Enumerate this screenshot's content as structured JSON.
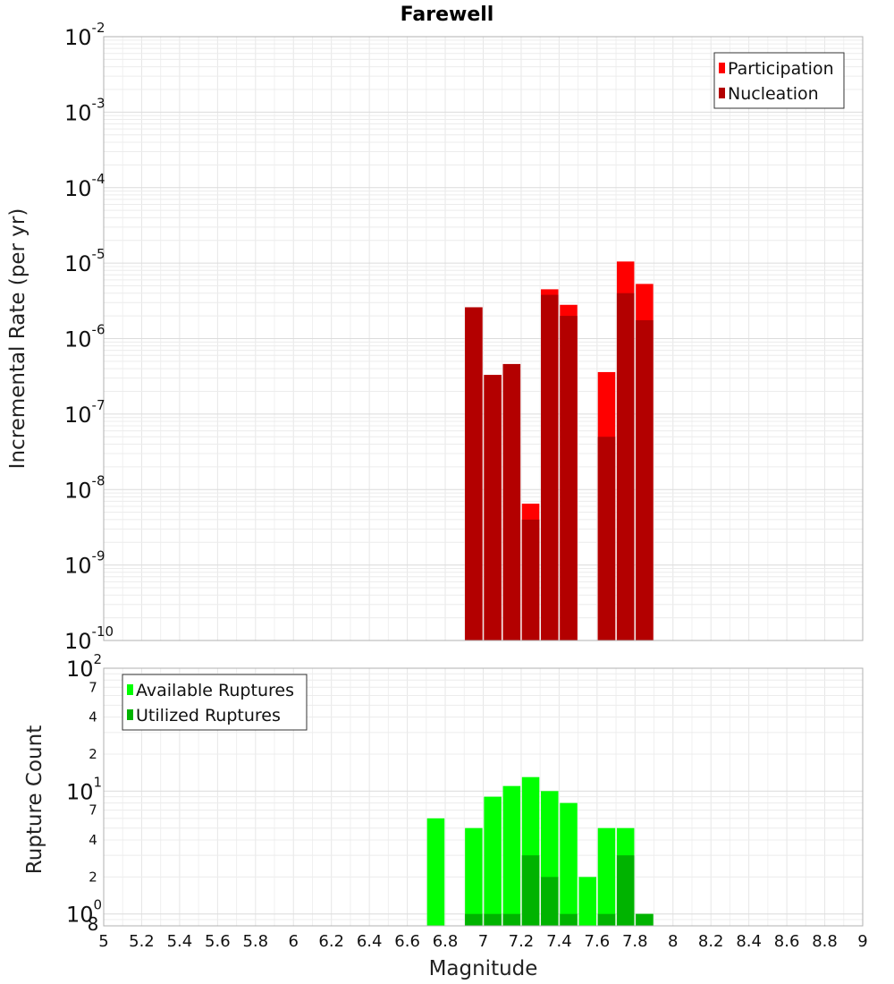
{
  "chart_data": [
    {
      "type": "bar",
      "title": "Farewell",
      "xlabel": "",
      "ylabel": "Incremental Rate (per yr)",
      "yscale": "log",
      "ylim": [
        1e-10,
        0.01
      ],
      "xlim": [
        5,
        9
      ],
      "yticks": [
        {
          "base": "10",
          "exp": "-2"
        },
        {
          "base": "10",
          "exp": "-3"
        },
        {
          "base": "10",
          "exp": "-4"
        },
        {
          "base": "10",
          "exp": "-5"
        },
        {
          "base": "10",
          "exp": "-6"
        },
        {
          "base": "10",
          "exp": "-7"
        },
        {
          "base": "10",
          "exp": "-8"
        },
        {
          "base": "10",
          "exp": "-9"
        },
        {
          "base": "10",
          "exp": "-10"
        }
      ],
      "legend_position": "top-right",
      "grid": true,
      "x": [
        6.95,
        7.05,
        7.15,
        7.25,
        7.35,
        7.45,
        7.65,
        7.75,
        7.85
      ],
      "series": [
        {
          "name": "Participation",
          "color": "#ff0000",
          "values": [
            2.6e-06,
            3.3e-07,
            4.6e-07,
            6.5e-09,
            4.5e-06,
            2.8e-06,
            3.6e-07,
            1.05e-05,
            5.3e-06
          ]
        },
        {
          "name": "Nucleation",
          "color": "#b30000",
          "values": [
            2.6e-06,
            3.3e-07,
            4.6e-07,
            4e-09,
            3.8e-06,
            2e-06,
            5e-08,
            4e-06,
            1.75e-06
          ]
        }
      ]
    },
    {
      "type": "bar",
      "title": "",
      "xlabel": "Magnitude",
      "ylabel": "Rupture Count",
      "yscale": "log",
      "ylim": [
        0.8,
        100
      ],
      "xlim": [
        5,
        9
      ],
      "yticks": [
        {
          "value": 100,
          "base": "10",
          "exp": "2"
        },
        {
          "value": 70,
          "label": "7"
        },
        {
          "value": 40,
          "label": "4"
        },
        {
          "value": 20,
          "label": "2"
        },
        {
          "value": 10,
          "base": "10",
          "exp": "1"
        },
        {
          "value": 7,
          "label": "7"
        },
        {
          "value": 4,
          "label": "4"
        },
        {
          "value": 2,
          "label": "2"
        },
        {
          "value": 1,
          "base": "10",
          "exp": "0"
        },
        {
          "value": 0.8,
          "label": "8"
        }
      ],
      "xticks": [
        "5",
        "5.2",
        "5.4",
        "5.6",
        "5.8",
        "6",
        "6.2",
        "6.4",
        "6.6",
        "6.8",
        "7",
        "7.2",
        "7.4",
        "7.6",
        "7.8",
        "8",
        "8.2",
        "8.4",
        "8.6",
        "8.8",
        "9"
      ],
      "legend_position": "top-left",
      "grid": true,
      "x": [
        6.75,
        6.95,
        7.05,
        7.15,
        7.25,
        7.35,
        7.45,
        7.55,
        7.65,
        7.75,
        7.85
      ],
      "series": [
        {
          "name": "Available Ruptures",
          "color": "#00ff00",
          "values": [
            6,
            5,
            9,
            11,
            13,
            10,
            8,
            2,
            5,
            5,
            1
          ]
        },
        {
          "name": "Utilized Ruptures",
          "color": "#00b300",
          "values": [
            0,
            1,
            1,
            1,
            3,
            2,
            1,
            0,
            1,
            3,
            1
          ]
        }
      ]
    }
  ]
}
